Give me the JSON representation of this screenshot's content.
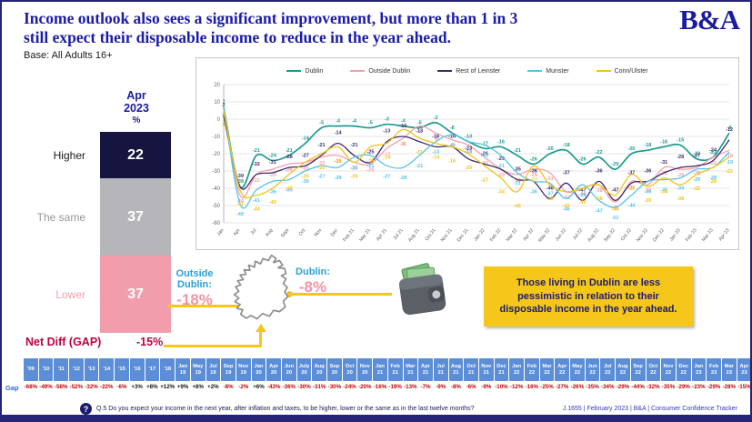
{
  "slide": {
    "title_line1": "Income outlook also sees a significant improvement, but more than 1 in 3",
    "title_line2": "still expect their disposable income to reduce in the year ahead.",
    "base": "Base: All Adults 16+",
    "logo": "B&A"
  },
  "bar_summary": {
    "header_lines": [
      "Apr",
      "2023",
      "%"
    ],
    "segments": [
      {
        "label": "Higher",
        "value": 22,
        "color": "#15153f",
        "label_color": "#1a1a1a"
      },
      {
        "label": "The same",
        "value": 37,
        "color": "#b5b5ba",
        "label_color": "#97979d"
      },
      {
        "label": "Lower",
        "value": 37,
        "color": "#f29dab",
        "label_color": "#f29dab"
      }
    ],
    "net_diff_label": "Net Diff (GAP)",
    "net_diff_value": "-15%"
  },
  "map_callouts": {
    "outside_dublin_label_line1": "Outside",
    "outside_dublin_label_line2": "Dublin:",
    "outside_dublin_value": "-18%",
    "dublin_label": "Dublin:",
    "dublin_value": "-8%",
    "accent_yellow": "#f5c71a",
    "label_blue": "#2a9fd8",
    "value_pink": "#f2949f"
  },
  "callout": {
    "text": "Those living in Dublin are less pessimistic in relation to their disposable income in the year ahead.",
    "bg": "#f5c71a"
  },
  "chart_data": [
    {
      "type": "line",
      "title": "",
      "x": [
        "Jan",
        "Apr",
        "Jul",
        "Aug",
        "Sept",
        "Oct",
        "Nov",
        "Dec",
        "Feb 21",
        "Mar 21",
        "Apr 21",
        "Jul 21",
        "Aug 21",
        "Oct 21",
        "Nov 21",
        "Dec 21",
        "Jan 22",
        "Feb 22",
        "Mar 22",
        "Apr 22",
        "May 22",
        "Jun 22",
        "Jul 22",
        "Aug 22",
        "Sep 22",
        "Oct 22",
        "Nov 22",
        "Dec 22",
        "Jan 23",
        "Feb 23",
        "Mar 23",
        "Apr 23"
      ],
      "ylim": [
        -60,
        20
      ],
      "yticks": [
        20,
        10,
        0,
        -10,
        -20,
        -30,
        -40,
        -50,
        -60
      ],
      "grid": true,
      "legend_position": "top",
      "series": [
        {
          "name": "Dublin",
          "color": "#1d9a8f",
          "values": [
            7,
            -39,
            -21,
            -24,
            -21,
            -14,
            -5,
            -4,
            -4,
            -5,
            -3,
            -4,
            -5,
            -2,
            -8,
            -13,
            -17,
            -16,
            -21,
            -26,
            -20,
            -18,
            -26,
            -22,
            -29,
            -20,
            -18,
            -16,
            -15,
            -23,
            -22,
            -8
          ]
        },
        {
          "name": "Outside Dublin",
          "color": "#f2a0ac",
          "values": [
            6,
            -44,
            -32,
            -29,
            -26,
            -25,
            -22,
            -21,
            -25,
            -26,
            -17,
            -11,
            -4,
            -8,
            -12,
            -15,
            -22,
            -29,
            -32,
            -29,
            -31,
            -42,
            -40,
            -38,
            -48,
            -36,
            -38,
            -28,
            -29,
            -28,
            -22,
            -18
          ]
        },
        {
          "name": "Rest of Leinster",
          "color": "#3d2b6d",
          "values": [
            2,
            -39,
            -32,
            -31,
            -28,
            -27,
            -21,
            -14,
            -21,
            -25,
            -13,
            -10,
            -13,
            -16,
            -16,
            -23,
            -26,
            -29,
            -35,
            -36,
            -46,
            -37,
            -47,
            -36,
            -47,
            -37,
            -36,
            -31,
            -28,
            -27,
            -24,
            -12
          ]
        },
        {
          "name": "Munster",
          "color": "#55c3ea",
          "values": [
            8,
            -49,
            -41,
            -36,
            -35,
            -30,
            -27,
            -28,
            -22,
            -21,
            -27,
            -28,
            -21,
            -13,
            -9,
            -13,
            -15,
            -21,
            -31,
            -36,
            -37,
            -46,
            -38,
            -47,
            -51,
            -44,
            -36,
            -35,
            -34,
            -29,
            -28,
            -19
          ]
        },
        {
          "name": "Conn/Ulster",
          "color": "#f0c419",
          "values": [
            5,
            -41,
            -44,
            -40,
            -32,
            -25,
            -20,
            -16,
            -25,
            -16,
            -14,
            -6,
            -11,
            -14,
            -16,
            -20,
            -27,
            -34,
            -42,
            -27,
            -38,
            -42,
            -40,
            -38,
            -44,
            -32,
            -39,
            -34,
            -38,
            -32,
            -28,
            -22
          ]
        }
      ]
    },
    {
      "type": "bar",
      "title": "Apr 2023 %",
      "categories": [
        "Higher",
        "The same",
        "Lower"
      ],
      "values": [
        22,
        37,
        37
      ],
      "note": "Net Diff (GAP) -15%"
    }
  ],
  "gap_table": {
    "row_label": "Gap",
    "columns": [
      {
        "label": "'09",
        "value": "-68%"
      },
      {
        "label": "'10",
        "value": "-49%"
      },
      {
        "label": "'11",
        "value": "-58%"
      },
      {
        "label": "'12",
        "value": "-52%"
      },
      {
        "label": "'13",
        "value": "-32%"
      },
      {
        "label": "'14",
        "value": "-22%"
      },
      {
        "label": "'15",
        "value": "-6%"
      },
      {
        "label": "'16",
        "value": "+3%"
      },
      {
        "label": "'17",
        "value": "+8%"
      },
      {
        "label": "'18",
        "value": "+12%"
      },
      {
        "label": "Jan 19",
        "value": "+9%"
      },
      {
        "label": "May 19",
        "value": "+8%"
      },
      {
        "label": "Jul 19",
        "value": "+2%"
      },
      {
        "label": "Sep 19",
        "value": "-8%"
      },
      {
        "label": "Nov 19",
        "value": "-2%"
      },
      {
        "label": "Jan 20",
        "value": "+6%"
      },
      {
        "label": "Apr 20",
        "value": "-43%"
      },
      {
        "label": "Jun 20",
        "value": "-36%"
      },
      {
        "label": "July 20",
        "value": "-30%"
      },
      {
        "label": "Aug 20",
        "value": "-31%"
      },
      {
        "label": "Sep 20",
        "value": "-30%"
      },
      {
        "label": "Oct 20",
        "value": "-24%"
      },
      {
        "label": "Nov 20",
        "value": "-20%"
      },
      {
        "label": "Jan 21",
        "value": "-16%"
      },
      {
        "label": "Feb 21",
        "value": "-19%"
      },
      {
        "label": "Mar 21",
        "value": "-13%"
      },
      {
        "label": "Apr 21",
        "value": "-7%"
      },
      {
        "label": "Jul 21",
        "value": "-9%"
      },
      {
        "label": "Aug 21",
        "value": "-8%"
      },
      {
        "label": "Oct 21",
        "value": "-6%"
      },
      {
        "label": "Nov 21",
        "value": "-9%"
      },
      {
        "label": "Dec 21",
        "value": "-10%"
      },
      {
        "label": "Jan 22",
        "value": "-12%"
      },
      {
        "label": "Feb 22",
        "value": "-16%"
      },
      {
        "label": "Mar 22",
        "value": "-25%"
      },
      {
        "label": "Apr 22",
        "value": "-27%"
      },
      {
        "label": "May 22",
        "value": "-26%"
      },
      {
        "label": "Jun 22",
        "value": "-35%"
      },
      {
        "label": "Jul 22",
        "value": "-34%"
      },
      {
        "label": "Aug 22",
        "value": "-29%"
      },
      {
        "label": "Sep 22",
        "value": "-44%"
      },
      {
        "label": "Oct 22",
        "value": "-32%"
      },
      {
        "label": "Nov 22",
        "value": "-35%"
      },
      {
        "label": "Dec 22",
        "value": "-29%"
      },
      {
        "label": "Jan 23",
        "value": "-23%"
      },
      {
        "label": "Feb 23",
        "value": "-29%"
      },
      {
        "label": "Mar 23",
        "value": "-28%"
      },
      {
        "label": "Apr 23",
        "value": "-15%"
      }
    ]
  },
  "footer": {
    "question": "Q.5   Do you expect your income in the next year, after inflation and taxes, to be higher, lower or the same as in the last twelve months?",
    "question_icon": "?",
    "source": "J.1655 | February 2023 | B&A | Consumer Confidence Tracker"
  }
}
